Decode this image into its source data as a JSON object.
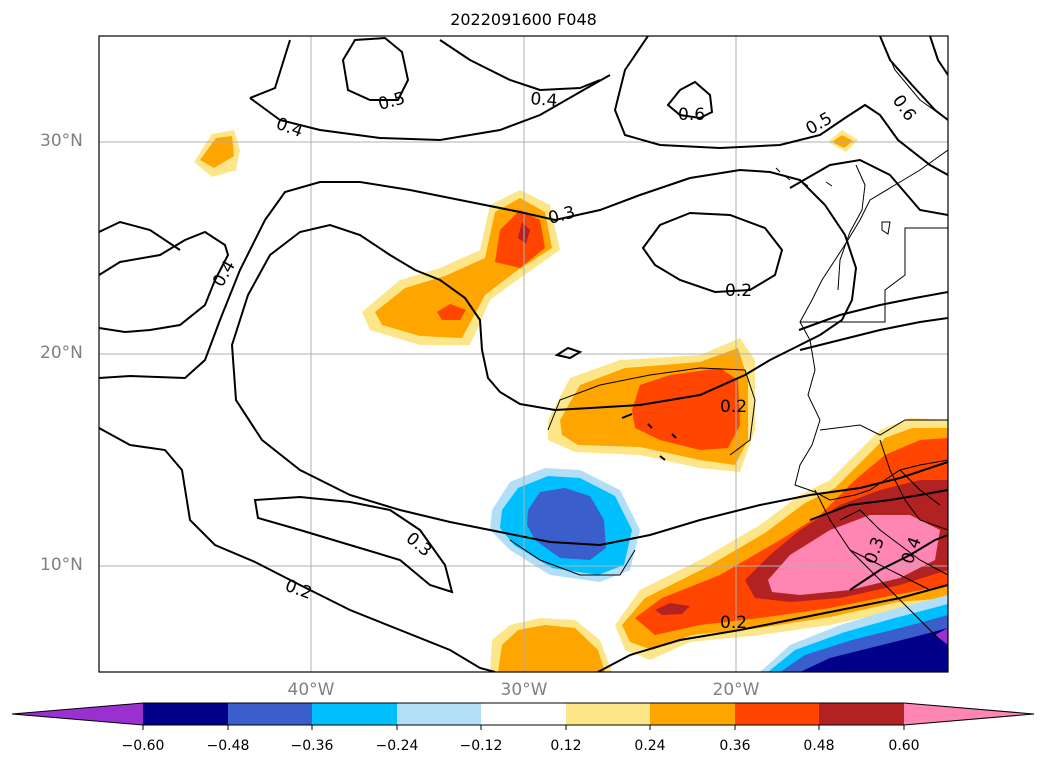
{
  "title": "2022091600 F048",
  "colors": {
    "frame": "#000000",
    "grid": "#b0b0b0",
    "contour": "#000000",
    "coast": "#000000"
  },
  "lat_labels": [
    "30°N",
    "20°N",
    "10°N"
  ],
  "lon_labels": [
    "40°W",
    "30°W",
    "20°W"
  ],
  "contour_labels": [
    "0.5",
    "0.4",
    "0.6",
    "0.5",
    "0.6",
    "0.4",
    "0.3",
    "0.4",
    "0.2",
    "0.2",
    "0.3",
    "0.2",
    "0.3",
    "0.4",
    "0.2"
  ],
  "colorbar": {
    "ticks": [
      "−0.60",
      "−0.48",
      "−0.36",
      "−0.24",
      "−0.12",
      "0.12",
      "0.24",
      "0.36",
      "0.48",
      "0.60"
    ],
    "colors": [
      "#9b30d0",
      "#00008b",
      "#3a5fcd",
      "#00bfff",
      "#b2dff7",
      "#ffffff",
      "#fde68a",
      "#ffa500",
      "#ff4500",
      "#b22222",
      "#ff85b3"
    ]
  }
}
